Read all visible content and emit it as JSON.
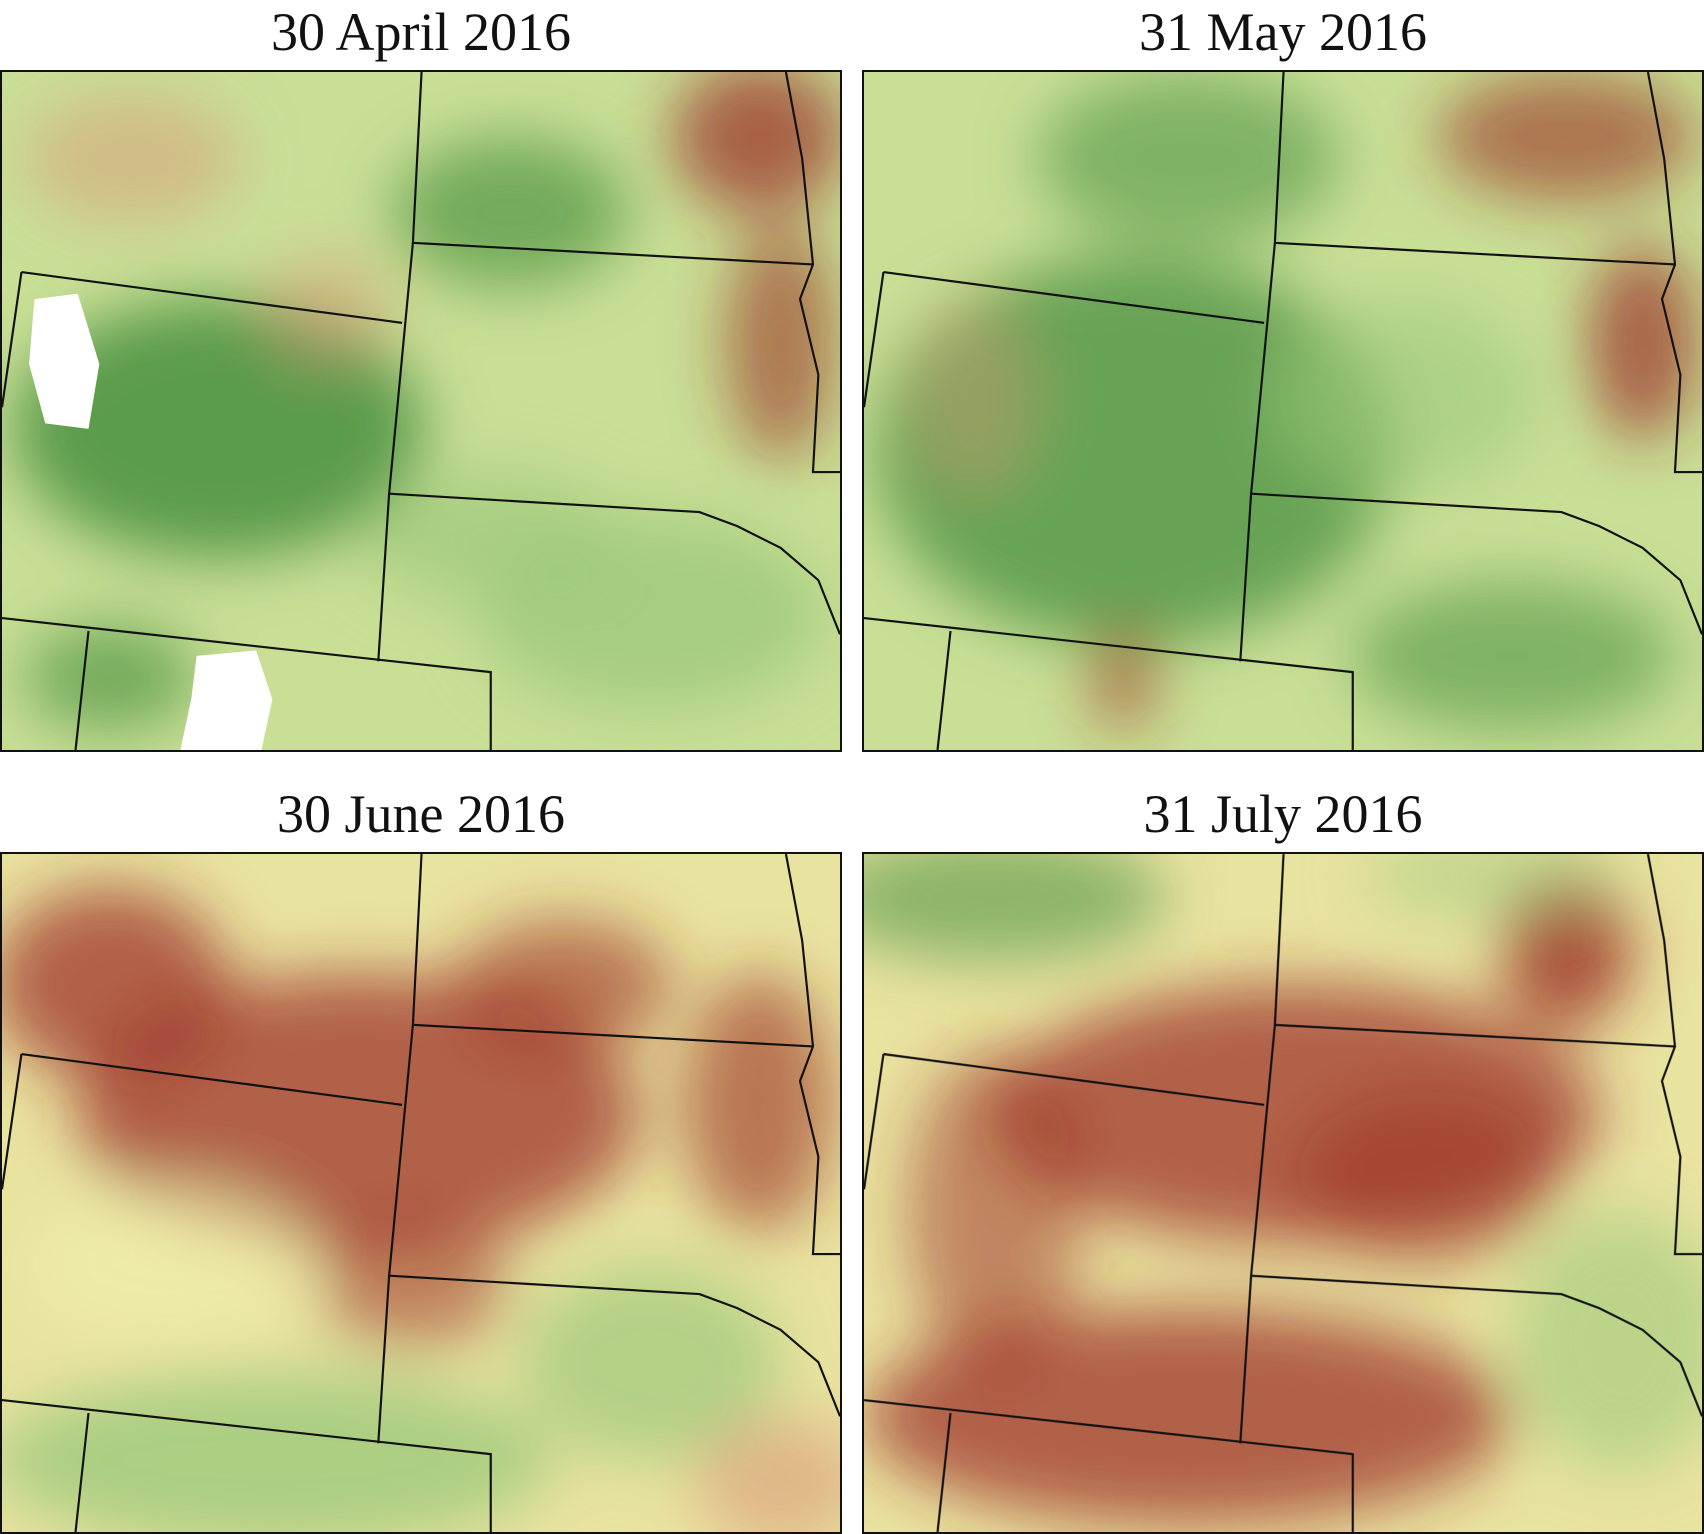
{
  "panels": [
    {
      "title": "30 April 2016"
    },
    {
      "title": "31 May 2016"
    },
    {
      "title": "30 June 2016"
    },
    {
      "title": "31 July 2016"
    }
  ]
}
